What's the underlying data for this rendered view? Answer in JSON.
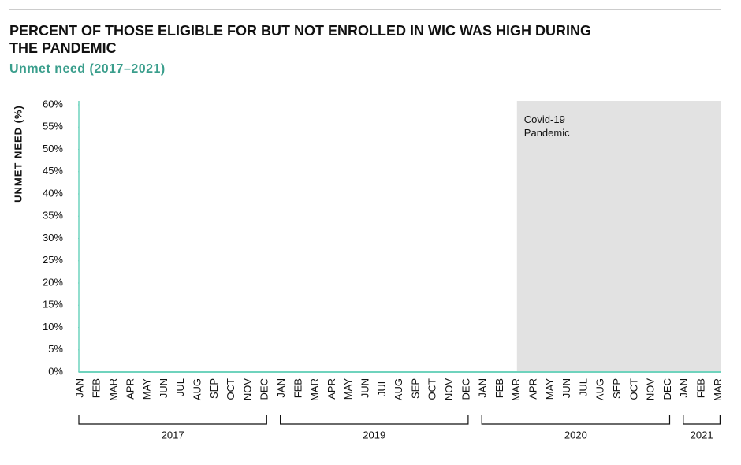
{
  "chart_data": {
    "type": "line",
    "title": "PERCENT OF THOSE ELIGIBLE FOR BUT NOT ENROLLED IN WIC WAS HIGH DURING THE PANDEMIC",
    "subtitle": "Unmet need (2017–2021)",
    "y_label": "UNMET NEED (%)",
    "x_groups": [
      {
        "label": "2017",
        "months": [
          "JAN",
          "FEB",
          "MAR",
          "APR",
          "MAY",
          "JUN",
          "JUL",
          "AUG",
          "SEP",
          "OCT",
          "NOV",
          "DEC"
        ]
      },
      {
        "label": "2019",
        "months": [
          "JAN",
          "FEB",
          "MAR",
          "APR",
          "MAY",
          "JUN",
          "JUL",
          "AUG",
          "SEP",
          "OCT",
          "NOV",
          "DEC"
        ]
      },
      {
        "label": "2020",
        "months": [
          "JAN",
          "FEB",
          "MAR",
          "APR",
          "MAY",
          "JUN",
          "JUL",
          "AUG",
          "SEP",
          "OCT",
          "NOV",
          "DEC"
        ]
      },
      {
        "label": "2021",
        "months": [
          "JAN",
          "FEB",
          "MAR"
        ]
      }
    ],
    "series": [],
    "ylim": [
      0,
      60
    ],
    "yticks": [
      {
        "value": 0,
        "label": "0%"
      },
      {
        "value": 5,
        "label": "5%"
      },
      {
        "value": 10,
        "label": "10%"
      },
      {
        "value": 15,
        "label": "15%"
      },
      {
        "value": 20,
        "label": "20%"
      },
      {
        "value": 25,
        "label": "25%"
      },
      {
        "value": 30,
        "label": "30%"
      },
      {
        "value": 35,
        "label": "35%"
      },
      {
        "value": 40,
        "label": "40%"
      },
      {
        "value": 45,
        "label": "45%"
      },
      {
        "value": 50,
        "label": "50%"
      },
      {
        "value": 55,
        "label": "55%"
      },
      {
        "value": 60,
        "label": "60%"
      }
    ],
    "axis_color": "#6fd3bd",
    "shade": {
      "text": "Covid-19 Pandemic",
      "color": "#e2e2e2",
      "start_year": "2020",
      "start_month": "MAR"
    }
  }
}
